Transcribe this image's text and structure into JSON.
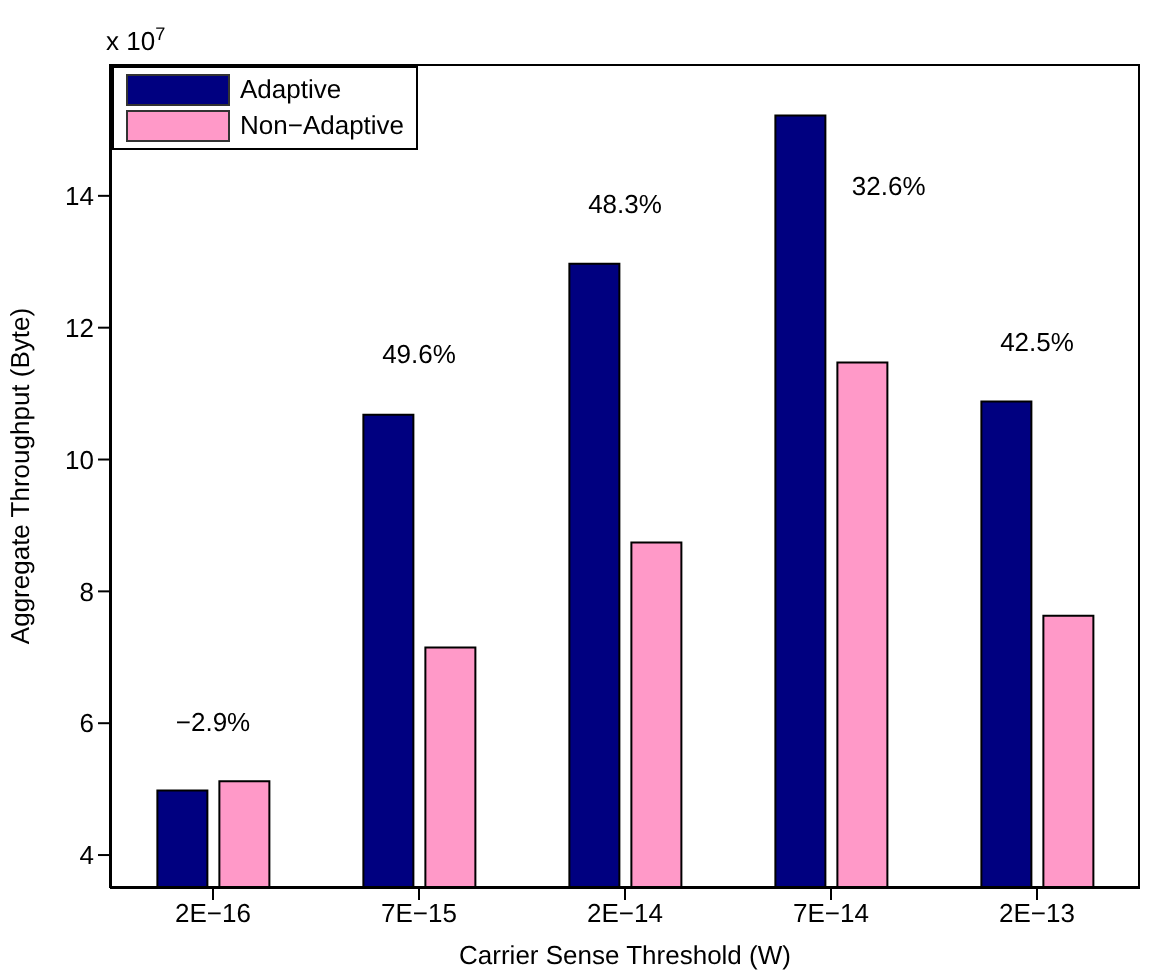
{
  "chart_data": {
    "type": "bar",
    "xlabel": "Carrier Sense Threshold (W)",
    "ylabel": "Aggregate Throughput (Byte)",
    "categories": [
      "2E−16",
      "7E−15",
      "2E−14",
      "7E−14",
      "2E−13"
    ],
    "series": [
      {
        "name": "Adaptive",
        "color": "#000080",
        "values": [
          4.98,
          10.68,
          12.97,
          15.22,
          10.88
        ]
      },
      {
        "name": "Non−Adaptive",
        "color": "#ff99c8",
        "values": [
          5.12,
          7.15,
          8.74,
          11.47,
          7.63
        ]
      }
    ],
    "ylim": [
      3.5,
      16
    ],
    "yticks": [
      4,
      6,
      8,
      10,
      12,
      14
    ],
    "grid": false,
    "legend": "top left",
    "annotations": [
      "x 10$^{7}$",
      "−2.9%",
      "49.6%",
      "48.3%",
      "32.6%",
      "42.5%"
    ]
  }
}
